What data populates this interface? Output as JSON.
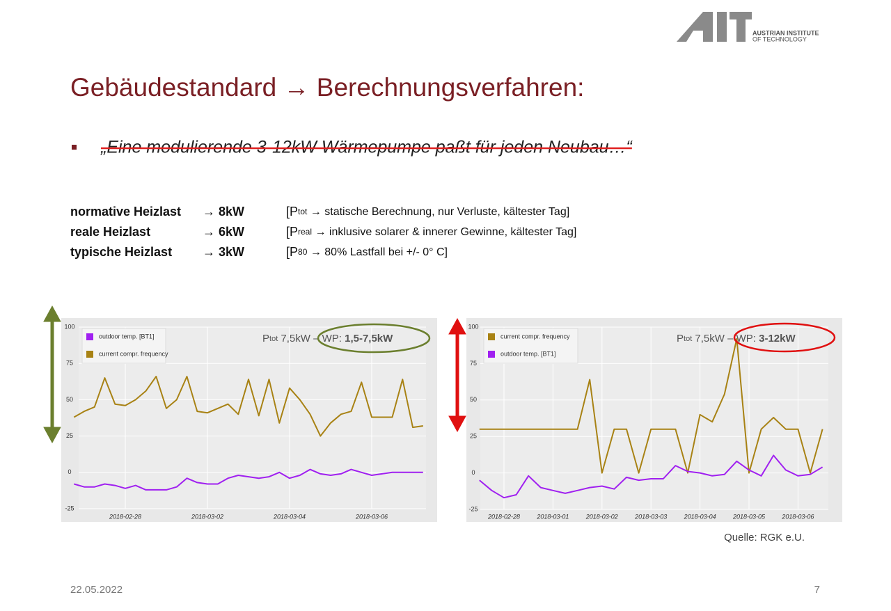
{
  "logo": {
    "mark": "AIT",
    "line1": "AUSTRIAN INSTITUTE",
    "line2": "OF TECHNOLOGY"
  },
  "title": "Gebäudestandard → Berechnungsverfahren:",
  "bullet": "„Eine modulierende 3-12kW Wärmepumpe paßt für jeden Neubau…“",
  "rows": [
    {
      "label": "normative Heizlast",
      "value": "→ 8kW",
      "note_pre": "[P",
      "note_sub": "tot",
      "note_post": " → statische Berechnung, nur Verluste, kältester Tag]"
    },
    {
      "label": "reale Heizlast",
      "value": "→ 6kW",
      "note_pre": "[P",
      "note_sub": "real",
      "note_post": " → inklusive solarer & innerer Gewinne, kältester Tag]"
    },
    {
      "label": "typische Heizlast",
      "value": "→ 3kW",
      "note_pre": "[P",
      "note_sub": "80",
      "note_post": " → 80% Lastfall bei +/- 0° C]"
    }
  ],
  "chart_data": [
    {
      "type": "line",
      "annotation": {
        "pre": "P",
        "sub": "tot",
        "mid": " 7,5kW – WP: ",
        "bold": "1,5-7,5kW"
      },
      "categories": [
        null,
        null,
        null,
        null,
        null,
        "2018-02-28",
        null,
        null,
        null,
        null,
        null,
        null,
        null,
        "2018-03-02",
        null,
        null,
        null,
        null,
        null,
        null,
        null,
        "2018-03-04",
        null,
        null,
        null,
        null,
        null,
        null,
        null,
        "2018-03-06",
        null,
        null,
        null,
        null,
        null
      ],
      "series": [
        {
          "name": "outdoor temp. [BT1]",
          "color": "#a020f0",
          "values": [
            -8,
            -10,
            -10,
            -8,
            -9,
            -11,
            -9,
            -12,
            -12,
            -12,
            -10,
            -4,
            -7,
            -8,
            -8,
            -4,
            -2,
            -3,
            -4,
            -3,
            0,
            -4,
            -2,
            2,
            -1,
            -2,
            -1,
            2,
            0,
            -2,
            -1,
            0,
            0,
            0,
            0
          ]
        },
        {
          "name": "current compr. frequency",
          "color": "#a88214",
          "values": [
            38,
            42,
            45,
            65,
            47,
            46,
            50,
            56,
            66,
            44,
            50,
            66,
            42,
            41,
            44,
            47,
            40,
            64,
            39,
            64,
            34,
            58,
            50,
            40,
            25,
            34,
            40,
            42,
            62,
            38,
            38,
            38,
            64,
            31,
            32
          ]
        }
      ],
      "ylim": [
        -25,
        100
      ],
      "yticks": [
        -25,
        0,
        25,
        50,
        75,
        100
      ],
      "grid": true
    },
    {
      "type": "line",
      "annotation": {
        "pre": "P",
        "sub": "tot",
        "mid": " 7,5kW – WP: ",
        "bold": "3-12kW"
      },
      "categories": [
        null,
        null,
        "2018-02-28",
        null,
        null,
        null,
        "2018-03-01",
        null,
        null,
        null,
        "2018-03-02",
        null,
        null,
        null,
        "2018-03-03",
        null,
        null,
        null,
        "2018-03-04",
        null,
        null,
        null,
        "2018-03-05",
        null,
        null,
        null,
        "2018-03-06",
        null,
        null
      ],
      "series": [
        {
          "name": "current compr. frequency",
          "color": "#a88214",
          "values": [
            30,
            30,
            30,
            30,
            30,
            30,
            30,
            30,
            30,
            64,
            0,
            30,
            30,
            0,
            30,
            30,
            30,
            0,
            40,
            35,
            54,
            92,
            0,
            30,
            38,
            30,
            30,
            0,
            30
          ]
        },
        {
          "name": "outdoor temp. [BT1]",
          "color": "#a020f0",
          "values": [
            -5,
            -12,
            -17,
            -15,
            -2,
            -10,
            -12,
            -14,
            -12,
            -10,
            -9,
            -11,
            -3,
            -5,
            -4,
            -4,
            5,
            1,
            0,
            -2,
            -1,
            8,
            2,
            -2,
            12,
            2,
            -2,
            -1,
            4
          ]
        }
      ],
      "ylim": [
        -25,
        100
      ],
      "yticks": [
        -25,
        0,
        25,
        50,
        75,
        100
      ],
      "grid": true
    }
  ],
  "source": "Quelle: RGK e.U.",
  "date": "22.05.2022",
  "page": "7"
}
